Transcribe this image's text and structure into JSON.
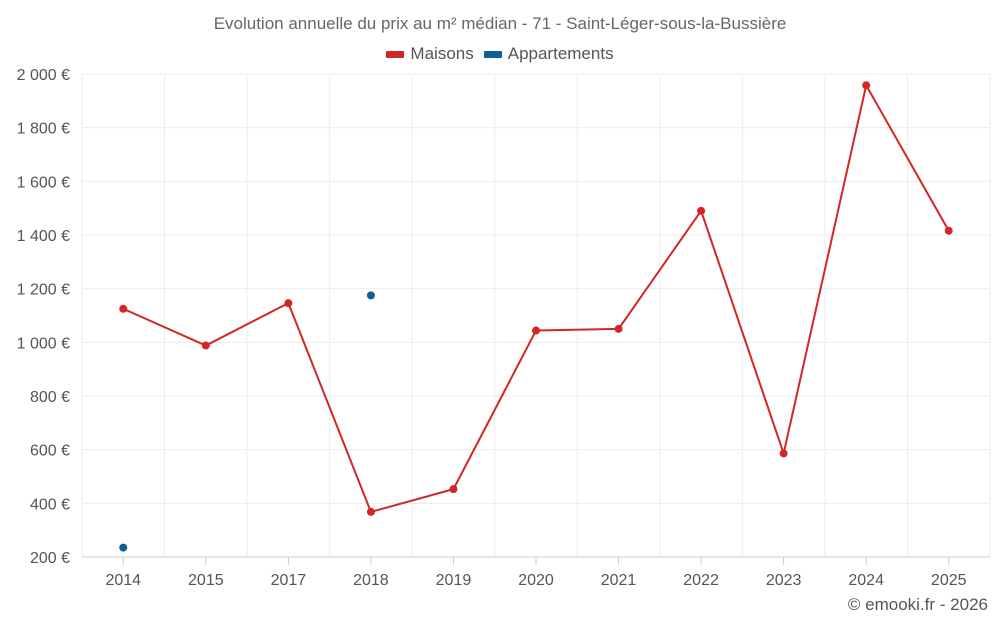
{
  "chart_data": {
    "type": "line",
    "title": "Evolution annuelle du prix au m² médian - 71 - Saint-Léger-sous-la-Bussière",
    "categories": [
      "2014",
      "2015",
      "2017",
      "2018",
      "2019",
      "2020",
      "2021",
      "2022",
      "2023",
      "2024",
      "2025"
    ],
    "y_ticks": [
      "200 €",
      "400 €",
      "600 €",
      "800 €",
      "1 000 €",
      "1 200 €",
      "1 400 €",
      "1 600 €",
      "1 800 €",
      "2 000 €"
    ],
    "ylim": [
      200,
      2000
    ],
    "grid": true,
    "legend_position": "top-center",
    "series": [
      {
        "name": "Maisons",
        "color": "#d32626",
        "values": [
          1125,
          988,
          1146,
          368,
          453,
          1044,
          1050,
          1490,
          586,
          1958,
          1416
        ]
      },
      {
        "name": "Appartements",
        "color": "#0b609b",
        "values": [
          235,
          null,
          null,
          1175,
          null,
          null,
          null,
          null,
          null,
          null,
          null
        ]
      }
    ]
  },
  "credit": "© emooki.fr - 2026"
}
